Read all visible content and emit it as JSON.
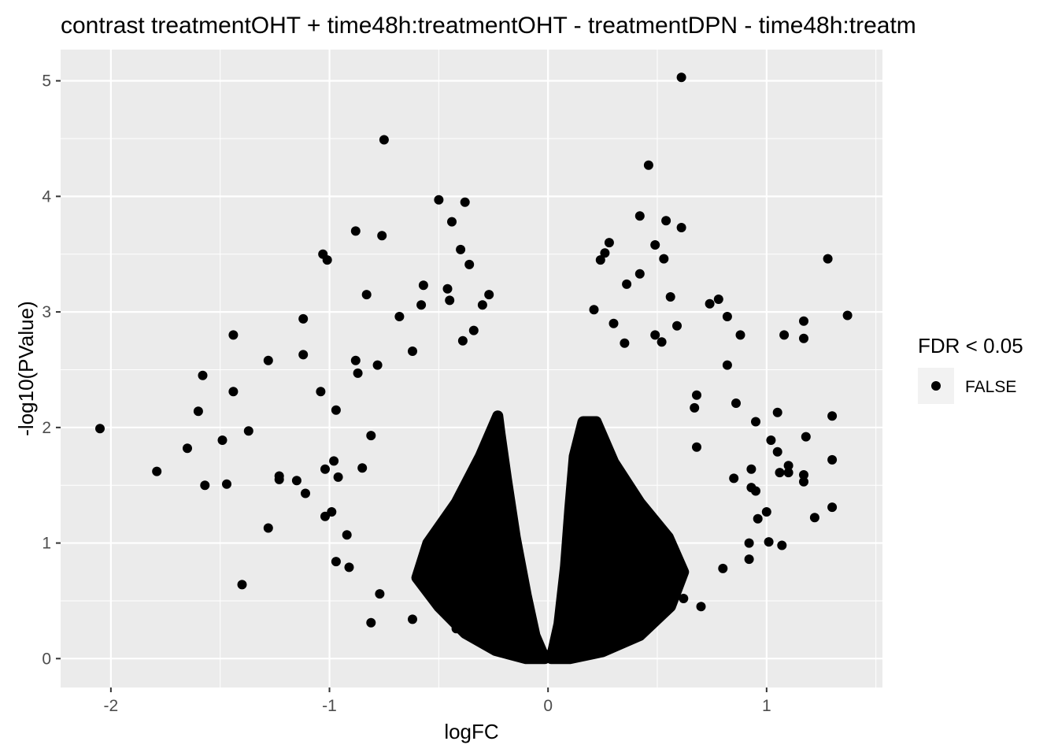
{
  "chart_data": {
    "type": "scatter",
    "title": "contrast treatmentOHT + time48h:treatmentOHT - treatmentDPN - time48h:treatm",
    "xlabel": "logFC",
    "ylabel": "-log10(PValue)",
    "xlim": [
      -2.23,
      1.53
    ],
    "ylim": [
      -0.25,
      5.27
    ],
    "x_ticks": [
      -2,
      -1,
      0,
      1
    ],
    "x_tick_labels": [
      "-2",
      "-1",
      "0",
      "1"
    ],
    "y_ticks": [
      0,
      1,
      2,
      3,
      4,
      5
    ],
    "y_tick_labels": [
      "0",
      "1",
      "2",
      "3",
      "4",
      "5"
    ],
    "grid": true,
    "legend": {
      "title": "FDR < 0.05",
      "placement": "right",
      "entries": [
        {
          "label": "FALSE",
          "color": "#000000"
        }
      ]
    },
    "colors": {
      "panel": "#ebebeb",
      "grid": "#ffffff",
      "point": "#000000",
      "text": "#4d4d4d"
    },
    "series": [
      {
        "name": "FALSE",
        "points": [
          [
            -2.05,
            1.99
          ],
          [
            -1.79,
            1.62
          ],
          [
            -1.65,
            1.82
          ],
          [
            -1.6,
            2.14
          ],
          [
            -1.58,
            2.45
          ],
          [
            -1.57,
            1.5
          ],
          [
            -1.49,
            1.89
          ],
          [
            -1.47,
            1.51
          ],
          [
            -1.44,
            2.8
          ],
          [
            -1.44,
            2.31
          ],
          [
            -1.4,
            0.64
          ],
          [
            -1.37,
            1.97
          ],
          [
            -1.28,
            2.58
          ],
          [
            -1.28,
            1.13
          ],
          [
            -1.23,
            1.58
          ],
          [
            -1.23,
            1.55
          ],
          [
            -1.15,
            1.54
          ],
          [
            -1.12,
            2.94
          ],
          [
            -1.12,
            2.63
          ],
          [
            -1.11,
            1.43
          ],
          [
            -1.04,
            2.31
          ],
          [
            -1.03,
            3.5
          ],
          [
            -1.01,
            3.45
          ],
          [
            -0.97,
            2.15
          ],
          [
            -1.02,
            1.64
          ],
          [
            -0.98,
            1.71
          ],
          [
            -1.02,
            1.23
          ],
          [
            -0.99,
            1.27
          ],
          [
            -0.96,
            1.57
          ],
          [
            -0.97,
            0.84
          ],
          [
            -0.88,
            3.7
          ],
          [
            -0.88,
            2.58
          ],
          [
            -0.83,
            3.15
          ],
          [
            -0.92,
            1.07
          ],
          [
            -0.91,
            0.79
          ],
          [
            -0.85,
            1.65
          ],
          [
            -0.81,
            0.31
          ],
          [
            -0.75,
            4.49
          ],
          [
            -0.76,
            3.66
          ],
          [
            -0.68,
            2.96
          ],
          [
            -0.62,
            2.66
          ],
          [
            -0.57,
            3.23
          ],
          [
            -0.58,
            3.06
          ],
          [
            -0.5,
            3.97
          ],
          [
            -0.44,
            3.78
          ],
          [
            -0.38,
            3.95
          ],
          [
            -0.4,
            3.54
          ],
          [
            -0.36,
            3.41
          ],
          [
            -0.46,
            3.2
          ],
          [
            -0.45,
            3.1
          ],
          [
            -0.3,
            3.06
          ],
          [
            -0.27,
            3.15
          ],
          [
            -0.34,
            2.84
          ],
          [
            -0.39,
            2.75
          ],
          [
            -0.62,
            0.34
          ],
          [
            -0.42,
            0.26
          ],
          [
            -0.77,
            0.56
          ],
          [
            -0.78,
            2.54
          ],
          [
            -0.87,
            2.47
          ],
          [
            -0.81,
            1.93
          ],
          [
            1.37,
            2.97
          ],
          [
            1.28,
            3.46
          ],
          [
            1.3,
            2.1
          ],
          [
            1.3,
            1.72
          ],
          [
            1.3,
            1.31
          ],
          [
            1.17,
            2.92
          ],
          [
            1.17,
            2.77
          ],
          [
            1.18,
            1.92
          ],
          [
            1.17,
            1.53
          ],
          [
            1.17,
            1.59
          ],
          [
            1.22,
            1.22
          ],
          [
            1.08,
            2.8
          ],
          [
            1.05,
            2.13
          ],
          [
            1.05,
            1.79
          ],
          [
            1.06,
            1.61
          ],
          [
            1.1,
            1.67
          ],
          [
            1.1,
            1.61
          ],
          [
            1.02,
            1.89
          ],
          [
            1.0,
            1.27
          ],
          [
            1.01,
            1.01
          ],
          [
            1.07,
            0.98
          ],
          [
            0.95,
            2.05
          ],
          [
            0.93,
            1.64
          ],
          [
            0.93,
            1.48
          ],
          [
            0.95,
            1.45
          ],
          [
            0.96,
            1.21
          ],
          [
            0.92,
            0.86
          ],
          [
            0.88,
            2.8
          ],
          [
            0.86,
            2.21
          ],
          [
            0.82,
            2.96
          ],
          [
            0.82,
            2.54
          ],
          [
            0.78,
            3.11
          ],
          [
            0.74,
            3.07
          ],
          [
            0.61,
            5.03
          ],
          [
            0.46,
            4.27
          ],
          [
            0.42,
            3.83
          ],
          [
            0.54,
            3.79
          ],
          [
            0.61,
            3.73
          ],
          [
            0.49,
            3.58
          ],
          [
            0.28,
            3.6
          ],
          [
            0.26,
            3.51
          ],
          [
            0.53,
            3.46
          ],
          [
            0.24,
            3.45
          ],
          [
            0.42,
            3.33
          ],
          [
            0.36,
            3.24
          ],
          [
            0.56,
            3.13
          ],
          [
            0.21,
            3.02
          ],
          [
            0.59,
            2.88
          ],
          [
            0.49,
            2.8
          ],
          [
            0.52,
            2.74
          ],
          [
            0.35,
            2.73
          ],
          [
            0.3,
            2.9
          ],
          [
            0.68,
            2.28
          ],
          [
            0.67,
            2.17
          ],
          [
            0.68,
            1.83
          ],
          [
            0.85,
            1.56
          ],
          [
            0.92,
            1.0
          ],
          [
            0.8,
            0.78
          ],
          [
            0.7,
            0.45
          ],
          [
            0.62,
            0.52
          ]
        ]
      }
    ]
  }
}
